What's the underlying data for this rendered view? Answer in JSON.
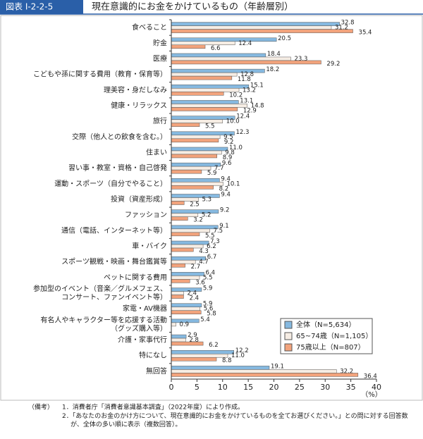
{
  "header": {
    "figure_id": "図表 I-2-2-5",
    "title": "現在意識的にお金をかけているもの（年齢層別）"
  },
  "chart_data": {
    "type": "hbar",
    "categories": [
      "食べること",
      "貯金",
      "医療",
      "こどもや孫に関する費用（教育・保育等）",
      "理美容・身だしなみ",
      "健康・リラックス",
      "旅行",
      "交際（他人との飲食を含む。）",
      "住まい",
      "習い事・教室・資格・自己啓発",
      "運動・スポーツ（自分でやること）",
      "投資（資産形成）",
      "ファッション",
      "通信（電話、インターネット等）",
      "車・バイク",
      "スポーツ観戦・映画・舞台鑑賞等",
      "ペットに関する費用",
      "参加型のイベント（音楽／グルメフェス、\nコンサート、ファンイベント等）",
      "家電・AV機器",
      "有名人やキャラクター等を応援する活動\n（グッズ購入等）",
      "介護・家事代行",
      "特になし",
      "無回答"
    ],
    "series": [
      {
        "name": "全体（N=5,634）",
        "color": "#86b9e0",
        "values": [
          32.8,
          20.5,
          18.4,
          18.2,
          15.1,
          13.1,
          12.4,
          12.3,
          11.0,
          9.6,
          9.4,
          9.4,
          9.2,
          9.1,
          7.3,
          6.7,
          6.4,
          5.9,
          5.9,
          5.4,
          2.9,
          12.2,
          19.1
        ],
        "value_labels": [
          "32.8",
          "20.5",
          "18.4",
          "18.2",
          "15.1",
          "13.1",
          "12.4",
          "12.3",
          "11.0",
          "9.6",
          "9.4",
          "9.4",
          "9.2",
          "9.1",
          "7.3",
          "6.7",
          "6.4",
          "5.9",
          "5.9",
          "5.4",
          "2.9",
          "12.2",
          "19.1"
        ]
      },
      {
        "name": "65~74歳（N=1,105）",
        "color": "#f6ede4",
        "values": [
          31.2,
          12.4,
          23.3,
          12.8,
          13.2,
          14.8,
          10.0,
          9.5,
          9.8,
          7.7,
          10.1,
          5.3,
          5.2,
          7.5,
          6.2,
          4.7,
          5.5,
          2.4,
          5.6,
          0.9,
          2.8,
          11.0,
          32.2
        ],
        "value_labels": [
          "31.2",
          "12.4",
          "23.3",
          "12.8",
          "13.2",
          "14.8",
          "10.0",
          "9.5",
          "9.8",
          "7.7",
          "10.1",
          "5.3",
          "5.2",
          "7.5",
          "6.2",
          "4.7",
          "5.5",
          "2.4",
          "5.6",
          "0.9",
          "2.8",
          "11.0",
          "32.2"
        ]
      },
      {
        "name": "75歳以上（N=807）",
        "color": "#f2a37c",
        "values": [
          35.4,
          6.6,
          29.2,
          11.8,
          10.2,
          12.9,
          5.5,
          9.2,
          8.9,
          5.9,
          8.2,
          2.5,
          3.2,
          5.5,
          4.3,
          2.7,
          3.6,
          2.4,
          5.8,
          null,
          6.2,
          8.8,
          36.4
        ],
        "value_labels": [
          "35.4",
          "6.6",
          "29.2",
          "11.8",
          "10.2",
          "12.9",
          "5.5",
          "9.2",
          "8.9",
          "5.9",
          "8.2",
          "2.5",
          "3.2",
          "5.5",
          "4.3",
          "2.7",
          "3.6",
          "2.4",
          "5.8",
          null,
          "6.2",
          "8.8",
          "36.4"
        ]
      }
    ],
    "xlim": [
      0,
      40
    ],
    "xticks": [
      0,
      5,
      10,
      15,
      20,
      25,
      30,
      35,
      40
    ],
    "xlabel": "（%）",
    "legend": "lower-right"
  },
  "notes": {
    "label": "（備考）",
    "items": [
      "1．消費者庁「消費者意識基本調査」（2022年度）により作成。",
      "2．「あなたのお金のかけ方について、現在意識的にお金をかけているものを全てお選びください。」との問に対する回答数が、全体の多い順に表示（複数回答）。"
    ]
  }
}
